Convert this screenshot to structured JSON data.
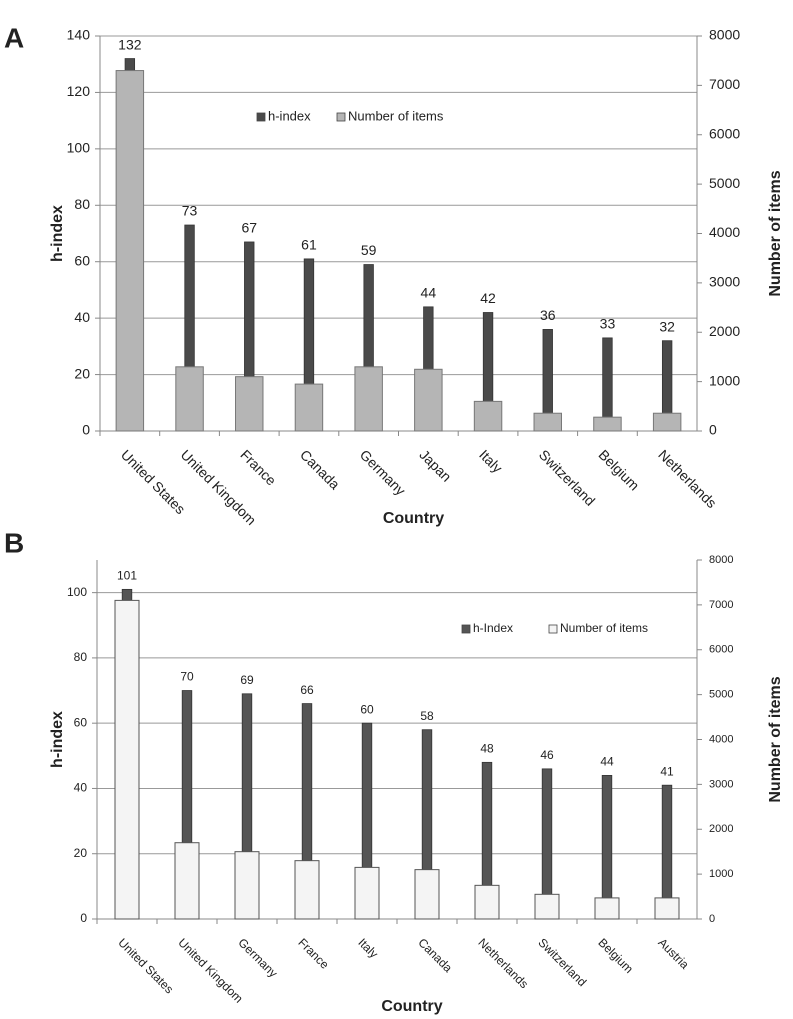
{
  "chart_data": [
    {
      "type": "bar",
      "panel": "A",
      "x_label": "Country",
      "y_label": "h-index",
      "y2_label": "Number of items",
      "categories": [
        "United States",
        "United Kingdom",
        "France",
        "Canada",
        "Germany",
        "Japan",
        "Italy",
        "Switzerland",
        "Belgium",
        "Netherlands"
      ],
      "series": [
        {
          "name": "h-index",
          "color": "#4a4a4a",
          "values": [
            132,
            73,
            67,
            61,
            59,
            44,
            42,
            36,
            33,
            32
          ]
        },
        {
          "name": "Number of items",
          "color": "#b5b5b5",
          "axis": "y2",
          "values": [
            7300,
            1300,
            1100,
            950,
            1300,
            1250,
            600,
            360,
            280,
            360
          ]
        }
      ],
      "ylim": [
        0,
        140
      ],
      "yticks": [
        0,
        20,
        40,
        60,
        80,
        100,
        120,
        140
      ],
      "y2lim": [
        0,
        8000
      ],
      "y2ticks": [
        0,
        1000,
        2000,
        3000,
        4000,
        5000,
        6000,
        7000,
        8000
      ],
      "grid": true
    },
    {
      "type": "bar",
      "panel": "B",
      "x_label": "Country",
      "y_label": "h-index",
      "y2_label": "Number of items",
      "categories": [
        "United States",
        "United Kingdom",
        "Germany",
        "France",
        "Italy",
        "Canada",
        "Netherlands",
        "Switzerland",
        "Belgium",
        "Austria"
      ],
      "series": [
        {
          "name": "h-Index",
          "color": "#555555",
          "values": [
            101,
            70,
            69,
            66,
            60,
            58,
            48,
            46,
            44,
            41
          ]
        },
        {
          "name": "Number of items",
          "color": "#f4f4f4",
          "axis": "y2",
          "values": [
            7100,
            1700,
            1500,
            1300,
            1150,
            1100,
            750,
            550,
            470,
            470
          ]
        }
      ],
      "ylim": [
        0,
        110
      ],
      "yticks": [
        0,
        20,
        40,
        60,
        80,
        100
      ],
      "y2lim": [
        0,
        8000
      ],
      "y2ticks": [
        0,
        1000,
        2000,
        3000,
        4000,
        5000,
        6000,
        7000,
        8000
      ],
      "grid": true
    }
  ]
}
